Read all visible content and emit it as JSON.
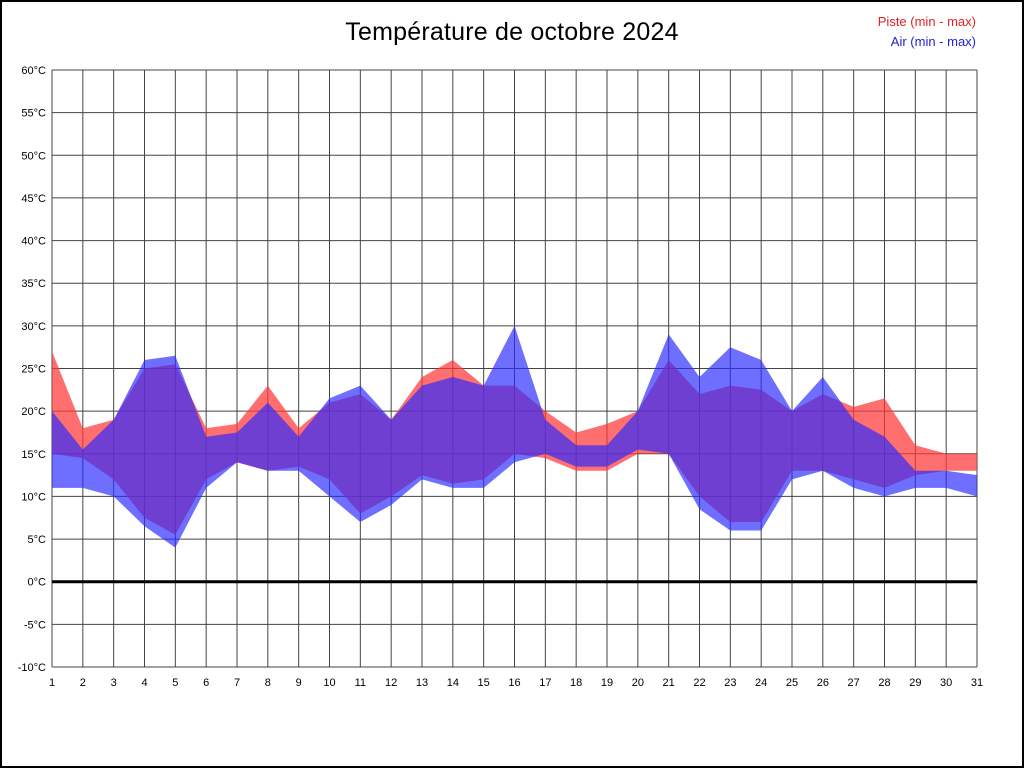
{
  "page": {
    "background": "#ffffff",
    "border_color": "#000000"
  },
  "legend": {
    "piste_label": "Piste (min - max)",
    "air_label": "Air (min - max)",
    "piste_color": "#e42020",
    "air_color": "#2020dd"
  },
  "chart_data": {
    "type": "area",
    "title": "Température de octobre 2024",
    "xlabel": "",
    "ylabel": "",
    "x": [
      1,
      2,
      3,
      4,
      5,
      6,
      7,
      8,
      9,
      10,
      11,
      12,
      13,
      14,
      15,
      16,
      17,
      18,
      19,
      20,
      21,
      22,
      23,
      24,
      25,
      26,
      27,
      28,
      29,
      30,
      31
    ],
    "series": [
      {
        "name": "Piste max",
        "values": [
          27,
          18,
          19,
          25,
          25.5,
          18,
          18.5,
          23,
          18,
          21,
          22,
          19,
          24,
          26,
          23,
          23,
          20,
          17.5,
          18.5,
          20,
          26,
          22,
          23,
          22.5,
          20,
          22,
          20.5,
          21.5,
          16,
          15,
          15
        ]
      },
      {
        "name": "Piste min",
        "values": [
          15,
          14.5,
          12,
          7.5,
          5.5,
          12,
          14,
          13,
          13.5,
          12,
          8,
          10,
          12.5,
          11.5,
          12,
          15,
          14.5,
          13,
          13,
          15,
          15,
          10,
          7,
          7,
          13,
          13,
          12,
          11,
          12.5,
          13,
          13
        ]
      },
      {
        "name": "Air max",
        "values": [
          20,
          15.5,
          19,
          26,
          26.5,
          17,
          17.5,
          21,
          17,
          21.5,
          23,
          19,
          23,
          24,
          23,
          30,
          19,
          16,
          16,
          20,
          29,
          24,
          27.5,
          26,
          20,
          24,
          19,
          17,
          13,
          13,
          12.5
        ]
      },
      {
        "name": "Air min",
        "values": [
          11,
          11,
          10,
          6.5,
          4,
          11,
          14,
          13,
          13,
          10,
          7,
          9,
          12,
          11,
          11,
          14,
          15,
          13.5,
          13.5,
          15.5,
          15,
          8.5,
          6,
          6,
          12,
          13,
          11,
          10,
          11,
          11,
          10
        ]
      }
    ],
    "ylim": [
      -10,
      60
    ],
    "ytick_step": 5,
    "ytick_suffix": "°C",
    "grid": true,
    "zero_line": true,
    "legend_position": "top-right",
    "band_colors": {
      "piste": "#ff3838",
      "air": "#2a2aff"
    },
    "band_opacity": {
      "piste": 0.72,
      "air": 0.68
    },
    "grid_color": "#444444",
    "zero_line_color": "#000000"
  }
}
